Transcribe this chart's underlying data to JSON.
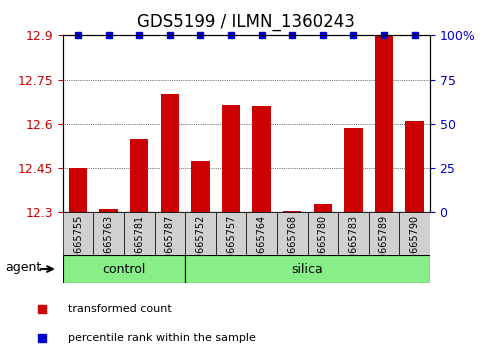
{
  "title": "GDS5199 / ILMN_1360243",
  "samples": [
    "GSM665755",
    "GSM665763",
    "GSM665781",
    "GSM665787",
    "GSM665752",
    "GSM665757",
    "GSM665764",
    "GSM665768",
    "GSM665780",
    "GSM665783",
    "GSM665789",
    "GSM665790"
  ],
  "bar_values": [
    12.45,
    12.31,
    12.55,
    12.7,
    12.475,
    12.665,
    12.66,
    12.305,
    12.33,
    12.585,
    12.9,
    12.61
  ],
  "percentile_values": [
    100,
    100,
    100,
    100,
    100,
    100,
    100,
    100,
    100,
    100,
    100,
    100
  ],
  "bar_color": "#cc0000",
  "percentile_color": "#0000cc",
  "ylim_left": [
    12.3,
    12.9
  ],
  "ylim_right": [
    0,
    100
  ],
  "yticks_left": [
    12.3,
    12.45,
    12.6,
    12.75,
    12.9
  ],
  "yticks_right": [
    0,
    25,
    50,
    75,
    100
  ],
  "ytick_labels_left": [
    "12.3",
    "12.45",
    "12.6",
    "12.75",
    "12.9"
  ],
  "ytick_labels_right": [
    "0",
    "25",
    "50",
    "75",
    "100%"
  ],
  "control_samples": 4,
  "silica_samples": 8,
  "control_label": "control",
  "silica_label": "silica",
  "agent_label": "agent",
  "legend_bar_label": "transformed count",
  "legend_pct_label": "percentile rank within the sample",
  "bg_color": "#ffffff",
  "tick_area_color": "#d0d0d0",
  "group_bar_color": "#88ee88",
  "title_fontsize": 12,
  "tick_fontsize": 9,
  "bar_width": 0.6
}
